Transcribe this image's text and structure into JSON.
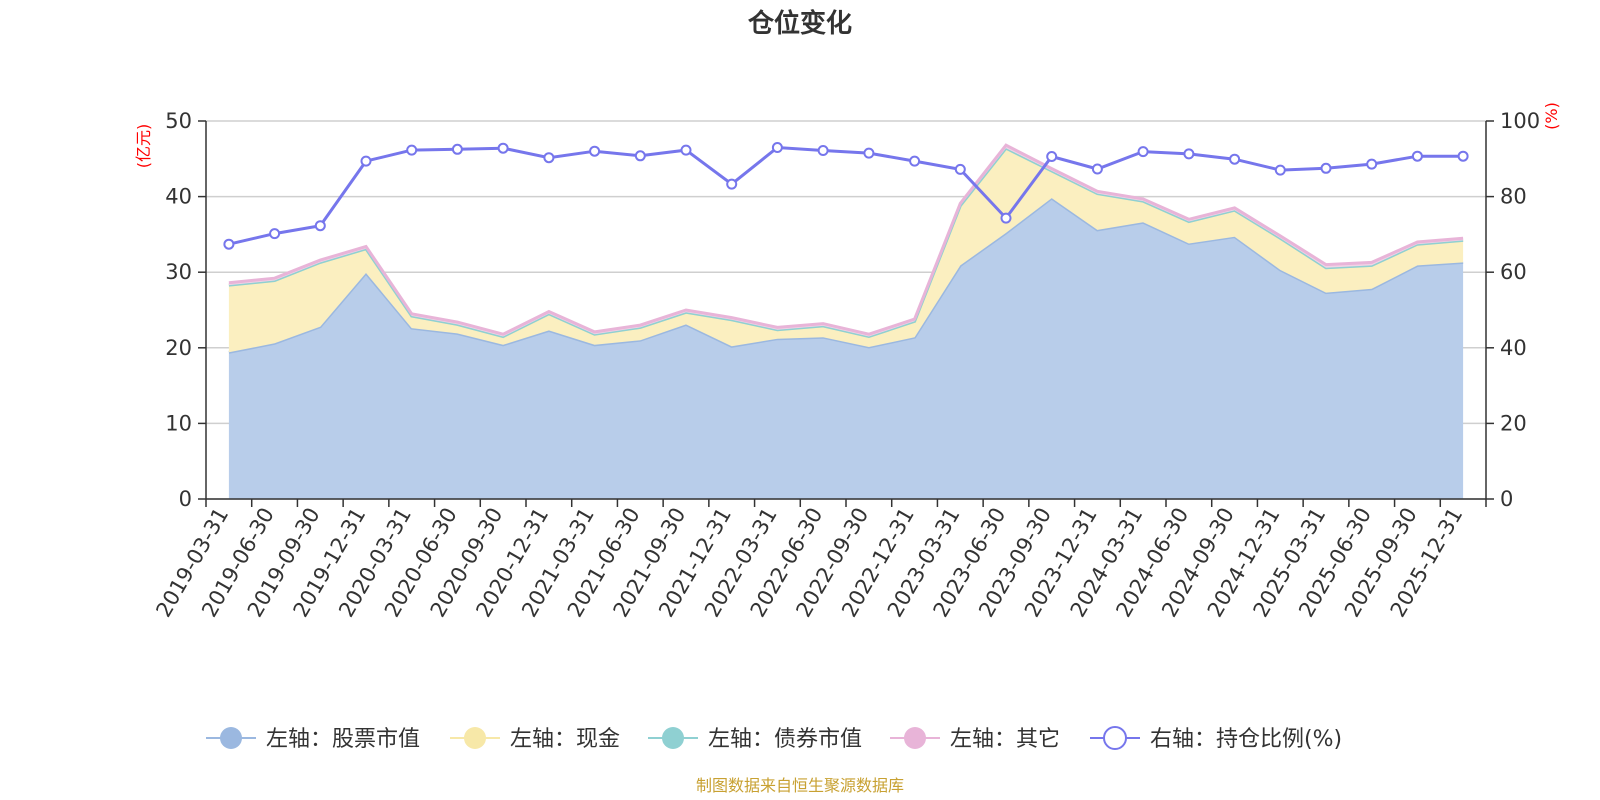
{
  "chart_data": {
    "type": "area",
    "title": "仓位变化",
    "y_left_label": "(亿元)",
    "y_right_label": "(%)",
    "y_left_range": [
      0,
      50
    ],
    "y_left_ticks": [
      "0",
      "10",
      "20",
      "30",
      "40",
      "50"
    ],
    "y_right_range": [
      0,
      100
    ],
    "y_right_ticks": [
      "0",
      "20",
      "40",
      "60",
      "80",
      "100"
    ],
    "grid": true,
    "legend_position": "bottom",
    "categories": [
      "2019-03-31",
      "2019-06-30",
      "2019-09-30",
      "2019-12-31",
      "2020-03-31",
      "2020-06-30",
      "2020-09-30",
      "2020-12-31",
      "2021-03-31",
      "2021-06-30",
      "2021-09-30",
      "2021-12-31",
      "2022-03-31",
      "2022-06-30",
      "2022-09-30",
      "2022-12-31",
      "2023-03-31",
      "2023-06-30",
      "2023-09-30",
      "2023-12-31",
      "2024-03-31",
      "2024-06-30",
      "2024-09-30",
      "2024-12-31",
      "2025-03-31",
      "2025-06-30",
      "2025-09-30",
      "2025-12-31"
    ],
    "series": [
      {
        "name": "左轴：股票市值",
        "axis": "left",
        "color": "#9bb8e0",
        "fill": "#b8cdea",
        "values": [
          19.4,
          20.6,
          22.8,
          29.9,
          22.6,
          21.9,
          20.4,
          22.3,
          20.4,
          21.0,
          23.1,
          20.2,
          21.2,
          21.4,
          20.1,
          21.4,
          30.9,
          35.2,
          39.8,
          35.6,
          36.6,
          33.8,
          34.7,
          30.3,
          27.3,
          27.8,
          30.9,
          31.3
        ]
      },
      {
        "name": "左轴：现金",
        "axis": "left",
        "color": "#f7e8a8",
        "fill": "#fbefc0",
        "values": [
          8.9,
          8.3,
          8.5,
          3.2,
          1.6,
          1.2,
          1.1,
          2.2,
          1.4,
          1.7,
          1.6,
          3.5,
          1.2,
          1.5,
          1.4,
          2.1,
          7.9,
          11.2,
          3.6,
          4.8,
          2.8,
          2.9,
          3.5,
          4.2,
          3.3,
          3.1,
          2.8,
          2.9
        ]
      },
      {
        "name": "左轴：债券市值",
        "axis": "left",
        "color": "#8fd0d2",
        "fill": "#c6e6e4",
        "values": [
          0,
          0,
          0,
          0,
          0,
          0,
          0,
          0,
          0,
          0,
          0,
          0,
          0,
          0,
          0,
          0,
          0,
          0,
          0,
          0,
          0,
          0,
          0,
          0,
          0,
          0,
          0,
          0
        ]
      },
      {
        "name": "左轴：其它",
        "axis": "left",
        "color": "#e8b4d8",
        "fill": "#f1d3e6",
        "values": [
          0.3,
          0.3,
          0.3,
          0.3,
          0.3,
          0.3,
          0.3,
          0.3,
          0.3,
          0.3,
          0.3,
          0.3,
          0.3,
          0.3,
          0.3,
          0.3,
          0.3,
          0.4,
          0.3,
          0.3,
          0.3,
          0.3,
          0.3,
          0.3,
          0.4,
          0.4,
          0.3,
          0.3
        ]
      },
      {
        "name": "右轴：持仓比例(%)",
        "axis": "right",
        "color": "#7676ec",
        "values": [
          67.4,
          70.2,
          72.3,
          89.4,
          92.3,
          92.5,
          92.8,
          90.3,
          92.0,
          90.8,
          92.3,
          83.3,
          93.0,
          92.2,
          91.5,
          89.4,
          87.2,
          74.3,
          90.6,
          87.3,
          91.9,
          91.3,
          89.9,
          87.0,
          87.5,
          88.6,
          90.7,
          90.7
        ]
      }
    ]
  },
  "source_text": "制图数据来自恒生聚源数据库",
  "source_color": "#c8a132"
}
